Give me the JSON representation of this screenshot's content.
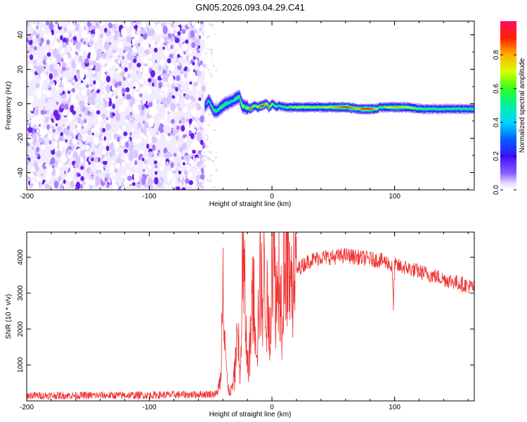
{
  "title": "GN05.2026.093.04.29.C41",
  "chart_data": [
    {
      "type": "heatmap",
      "name": "spectrogram",
      "xlabel": "Height of straight line (km)",
      "ylabel": "Frequency (Hz)",
      "xlim": [
        -200,
        165
      ],
      "ylim": [
        -50,
        48
      ],
      "x_ticks": [
        -200,
        -100,
        0,
        100
      ],
      "x_tick_labels": [
        "-200",
        "-100",
        "0",
        "100"
      ],
      "y_ticks": [
        40,
        20,
        0,
        -20,
        -40
      ],
      "y_tick_labels": [
        "40",
        "20",
        "0",
        "-20",
        "-40"
      ],
      "noise_region_x": [
        -200,
        -55
      ],
      "signal_track": {
        "x": [
          -55,
          -52,
          -48,
          -45,
          -42,
          -38,
          -35,
          -32,
          -30,
          -27,
          -25,
          -22,
          -18,
          -15,
          -12,
          -8,
          -5,
          -3,
          0,
          3,
          5,
          10,
          20,
          40,
          60,
          70,
          75,
          80,
          85,
          87,
          90,
          100,
          110,
          120,
          130,
          150,
          165
        ],
        "freq": [
          -1,
          2,
          -4,
          -4,
          -2,
          0,
          1,
          2,
          3,
          4,
          -1,
          -2,
          -3,
          -1,
          -2,
          -1,
          0,
          -2,
          0,
          -2,
          -1,
          -2,
          -2,
          -2,
          -2,
          -3,
          -3,
          -3,
          -3,
          -2,
          -2,
          -2,
          -2,
          -3,
          -3,
          -3,
          -3
        ],
        "amplitude": [
          0.3,
          0.45,
          0.55,
          0.5,
          0.6,
          0.55,
          0.5,
          0.45,
          0.6,
          0.55,
          0.7,
          0.55,
          0.9,
          0.6,
          0.75,
          0.95,
          0.7,
          0.85,
          0.6,
          0.55,
          0.5,
          0.55,
          0.7,
          0.65,
          0.9,
          0.75,
          0.95,
          0.9,
          0.7,
          0.55,
          0.6,
          0.8,
          0.7,
          0.6,
          0.55,
          0.55,
          0.55
        ]
      },
      "colorbar": {
        "label": "Normalized spectral amplitude",
        "range": [
          0.0,
          1.0
        ],
        "ticks": [
          0.0,
          0.2,
          0.4,
          0.6,
          0.8
        ],
        "tick_labels": [
          "0.0",
          "0.2",
          "0.4",
          "0.6",
          "0.8"
        ],
        "colormap": "hsv-rainbow"
      }
    },
    {
      "type": "line",
      "name": "snr",
      "xlabel": "Height of straight line (km)",
      "ylabel": "SNR (10 * v/v)",
      "xlim": [
        -200,
        165
      ],
      "ylim": [
        0,
        4700
      ],
      "x_ticks": [
        -200,
        -100,
        0,
        100
      ],
      "x_tick_labels": [
        "-200",
        "-100",
        "0",
        "100"
      ],
      "y_ticks": [
        1000,
        2000,
        3000,
        4000
      ],
      "y_tick_labels": [
        "1000",
        "2000",
        "3000",
        "4000"
      ],
      "color": "#f03030",
      "envelope": {
        "x": [
          -200,
          -150,
          -100,
          -60,
          -45,
          -42,
          -41,
          -40,
          -38,
          -36,
          -34,
          -32,
          -30,
          -28,
          -26,
          -24,
          -22,
          -20,
          -18,
          -16,
          -14,
          -12,
          -10,
          -8,
          -6,
          -4,
          -2,
          0,
          2,
          4,
          6,
          8,
          10,
          12,
          15,
          18,
          22,
          26,
          30,
          40,
          50,
          60,
          70,
          80,
          90,
          95,
          98,
          99,
          100,
          102,
          110,
          120,
          130,
          140,
          150,
          160,
          165
        ],
        "y": [
          150,
          150,
          160,
          180,
          200,
          600,
          1800,
          4400,
          1500,
          300,
          250,
          400,
          900,
          2200,
          400,
          3800,
          2800,
          900,
          1400,
          3000,
          2600,
          1500,
          3500,
          2900,
          3500,
          2600,
          1800,
          4600,
          3600,
          2800,
          3900,
          2500,
          4200,
          4600,
          3000,
          3500,
          3700,
          3800,
          3900,
          4000,
          4000,
          4050,
          4000,
          3950,
          3900,
          3850,
          3700,
          2550,
          3800,
          3750,
          3700,
          3600,
          3500,
          3400,
          3300,
          3200,
          3150
        ]
      },
      "noise_amplitude": 180
    }
  ]
}
